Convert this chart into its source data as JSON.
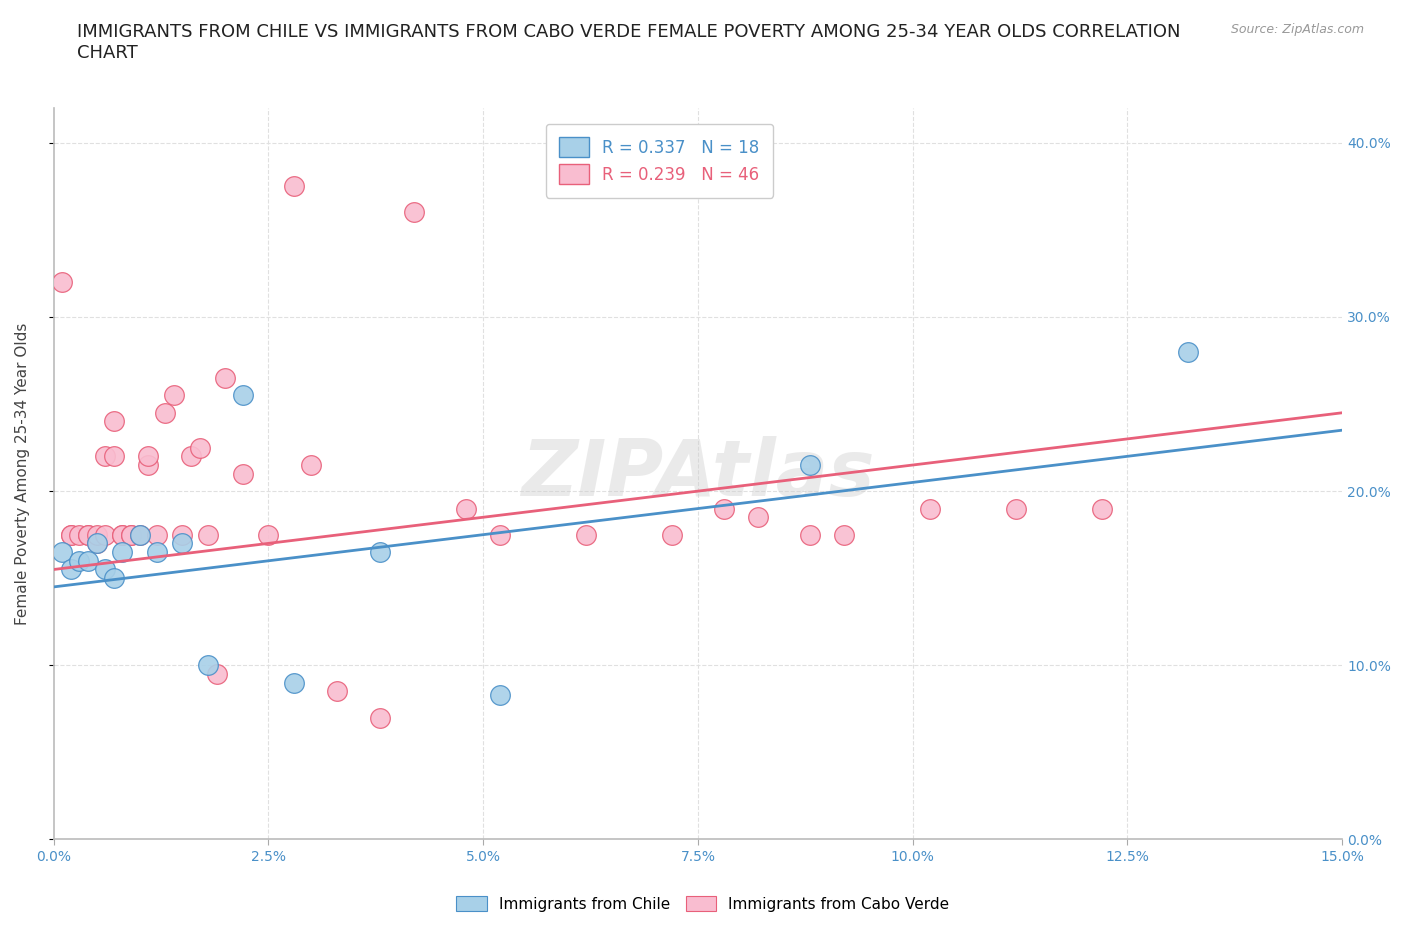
{
  "title": "IMMIGRANTS FROM CHILE VS IMMIGRANTS FROM CABO VERDE FEMALE POVERTY AMONG 25-34 YEAR OLDS CORRELATION\nCHART",
  "source": "Source: ZipAtlas.com",
  "ylabel_label": "Female Poverty Among 25-34 Year Olds",
  "xlim": [
    0.0,
    0.15
  ],
  "ylim": [
    0.0,
    0.42
  ],
  "chile_R": 0.337,
  "chile_N": 18,
  "caboverde_R": 0.239,
  "caboverde_N": 46,
  "chile_color": "#A8D0E8",
  "caboverde_color": "#F9BDD0",
  "chile_line_color": "#4A90C8",
  "caboverde_line_color": "#E8607A",
  "watermark": "ZIPAtlas",
  "chile_x": [
    0.001,
    0.002,
    0.003,
    0.004,
    0.005,
    0.006,
    0.007,
    0.008,
    0.01,
    0.012,
    0.015,
    0.018,
    0.022,
    0.028,
    0.038,
    0.052,
    0.088,
    0.132
  ],
  "chile_y": [
    0.165,
    0.155,
    0.16,
    0.16,
    0.17,
    0.155,
    0.15,
    0.165,
    0.175,
    0.165,
    0.17,
    0.1,
    0.255,
    0.09,
    0.165,
    0.083,
    0.215,
    0.28
  ],
  "caboverde_x": [
    0.001,
    0.002,
    0.002,
    0.003,
    0.004,
    0.004,
    0.005,
    0.005,
    0.006,
    0.006,
    0.007,
    0.007,
    0.008,
    0.008,
    0.009,
    0.009,
    0.01,
    0.011,
    0.011,
    0.012,
    0.013,
    0.014,
    0.015,
    0.016,
    0.017,
    0.018,
    0.019,
    0.02,
    0.022,
    0.025,
    0.028,
    0.03,
    0.033,
    0.038,
    0.042,
    0.048,
    0.052,
    0.062,
    0.072,
    0.078,
    0.082,
    0.088,
    0.092,
    0.102,
    0.112,
    0.122
  ],
  "caboverde_y": [
    0.32,
    0.175,
    0.175,
    0.175,
    0.175,
    0.175,
    0.17,
    0.175,
    0.175,
    0.22,
    0.24,
    0.22,
    0.175,
    0.175,
    0.175,
    0.175,
    0.175,
    0.215,
    0.22,
    0.175,
    0.245,
    0.255,
    0.175,
    0.22,
    0.225,
    0.175,
    0.095,
    0.265,
    0.21,
    0.175,
    0.375,
    0.215,
    0.085,
    0.07,
    0.36,
    0.19,
    0.175,
    0.175,
    0.175,
    0.19,
    0.185,
    0.175,
    0.175,
    0.19,
    0.19,
    0.19
  ],
  "grid_color": "#E0E0E0",
  "background_color": "#FFFFFF",
  "title_fontsize": 13,
  "axis_label_fontsize": 11,
  "tick_fontsize": 10,
  "legend_fontsize": 12
}
